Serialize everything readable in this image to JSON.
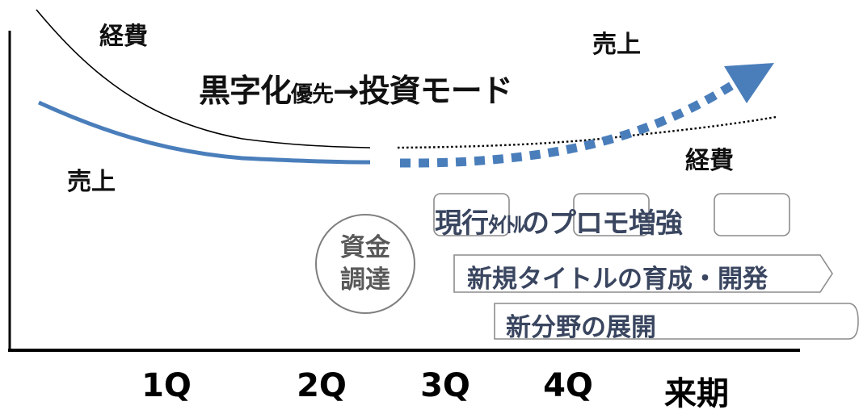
{
  "labels": {
    "expense_left": "経費",
    "sales_left": "売上",
    "sales_right": "売上",
    "expense_right": "経費"
  },
  "strategy": {
    "main": "黒字化",
    "small": "優先",
    "arrow": "→",
    "rest": "投資モード"
  },
  "funding": {
    "line1": "資金",
    "line2": "調達"
  },
  "plans": {
    "promo_part1": "現行",
    "promo_part2": "ﾀｲﾄﾙ",
    "promo_part3": "のプロモ増強",
    "new_titles": "新規タイトルの育成・開発",
    "new_fields": "新分野の展開"
  },
  "x_axis": [
    "1Q",
    "2Q",
    "3Q",
    "4Q",
    "来期"
  ],
  "colors": {
    "sales_line": "#4a7ebb",
    "expense_line": "#000000",
    "box_border": "#8c8c8c",
    "plan_text": "#3a4660"
  }
}
